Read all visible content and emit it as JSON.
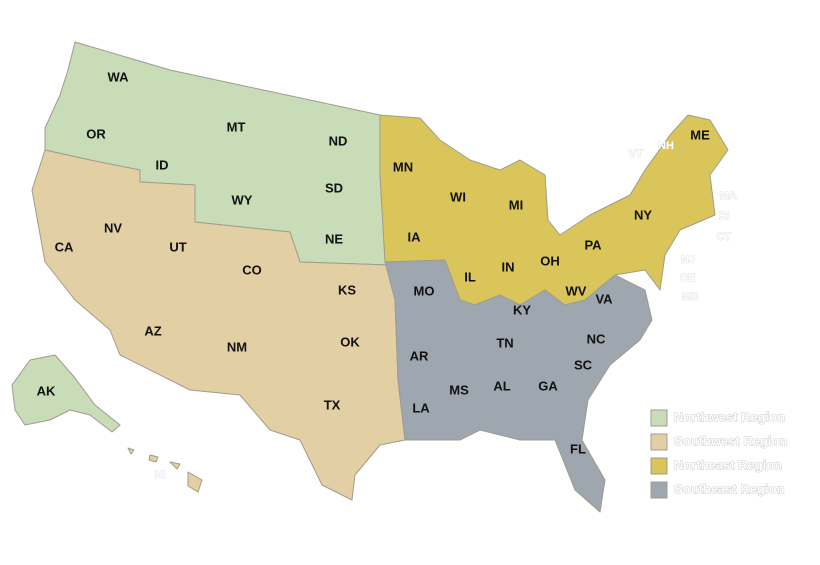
{
  "regions": [
    {
      "name": "Northwest Region",
      "color": "#c8dcb8",
      "states": [
        "WA",
        "OR",
        "MT",
        "ID",
        "WY",
        "ND",
        "SD",
        "NE",
        "AK"
      ]
    },
    {
      "name": "Southwest Region",
      "color": "#e3cfa4",
      "states": [
        "CA",
        "NV",
        "UT",
        "CO",
        "AZ",
        "NM",
        "KS",
        "OK",
        "TX",
        "HI"
      ]
    },
    {
      "name": "Northeast Region",
      "color": "#d9c55a",
      "states": [
        "MN",
        "WI",
        "MI",
        "IA",
        "IL",
        "IN",
        "OH",
        "PA",
        "NY",
        "WV",
        "ME",
        "VT",
        "NH",
        "MA",
        "RI",
        "CT",
        "NJ",
        "DE",
        "MD"
      ]
    },
    {
      "name": "Southeast Region",
      "color": "#9ea6b0",
      "states": [
        "MO",
        "AR",
        "LA",
        "MS",
        "AL",
        "TN",
        "KY",
        "GA",
        "FL",
        "SC",
        "NC",
        "VA"
      ]
    }
  ]
}
